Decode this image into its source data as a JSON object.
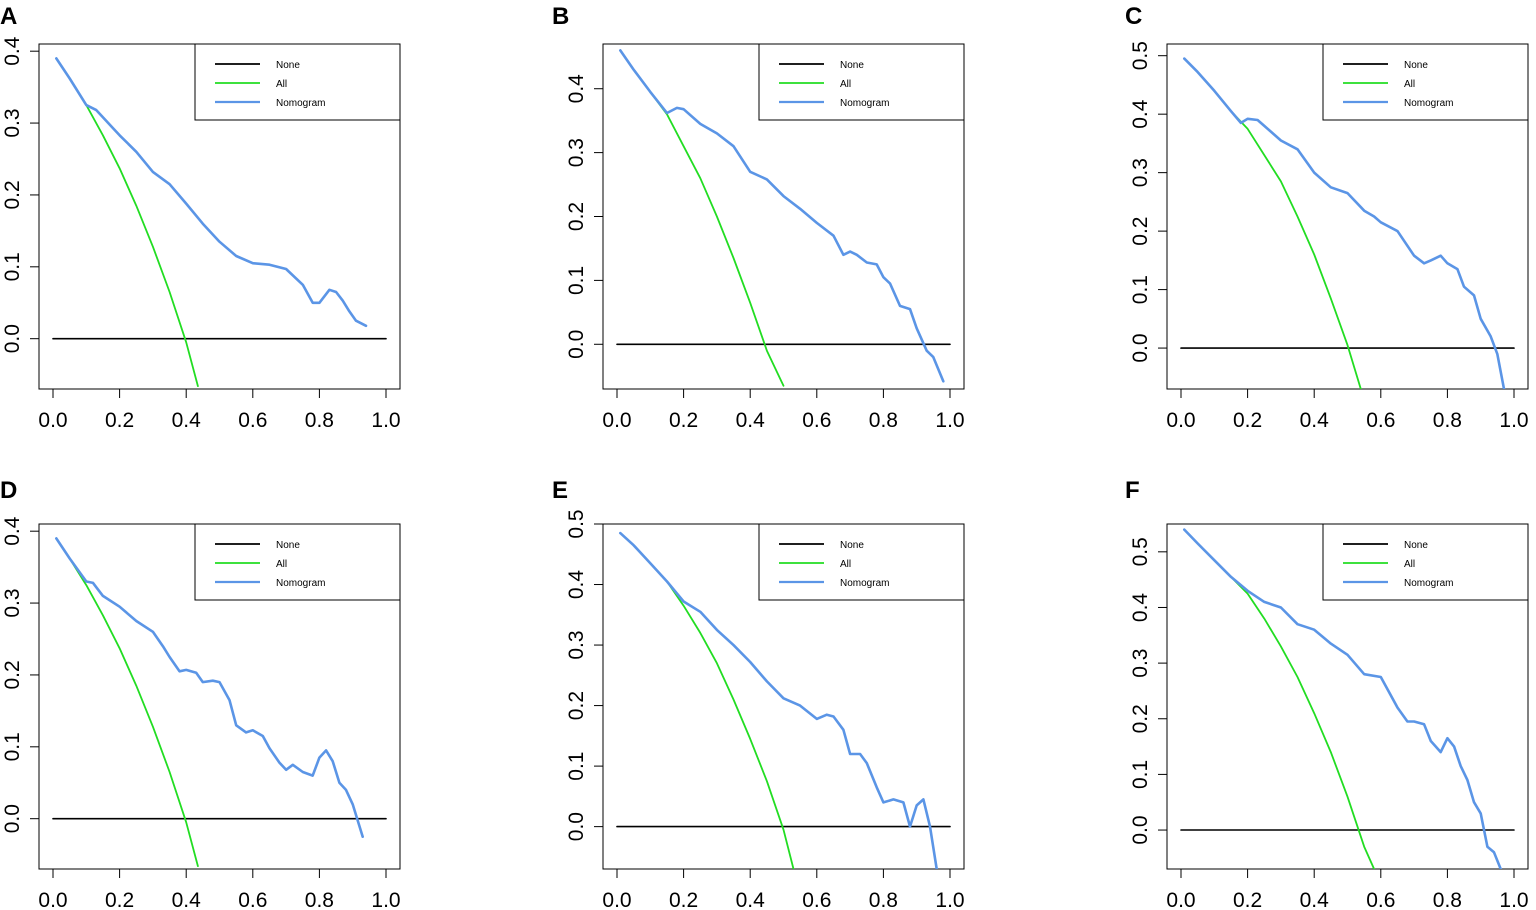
{
  "figure": {
    "colors": {
      "none": "#000000",
      "all": "#22dd22",
      "nomogram": "#5b95e6",
      "frame": "#000000"
    }
  },
  "chart_data": [
    {
      "panel_label": "A",
      "type": "line",
      "xlim": [
        0,
        1
      ],
      "ylim": [
        -0.07,
        0.41
      ],
      "x_ticks": [
        0.0,
        0.2,
        0.4,
        0.6,
        0.8,
        1.0
      ],
      "x_tick_labels": [
        "0.0",
        "0.2",
        "0.4",
        "0.6",
        "0.8",
        "1.0"
      ],
      "y_ticks": [
        0.0,
        0.1,
        0.2,
        0.3,
        0.4
      ],
      "y_tick_labels": [
        "0.0",
        "0.1",
        "0.2",
        "0.3",
        "0.4"
      ],
      "legend": [
        "None",
        "All",
        "Nomogram"
      ],
      "series": [
        {
          "name": "None",
          "x": [
            0.0,
            1.0
          ],
          "y": [
            0.0,
            0.0
          ]
        },
        {
          "name": "All",
          "x": [
            0.01,
            0.05,
            0.1,
            0.15,
            0.2,
            0.25,
            0.3,
            0.35,
            0.4,
            0.435
          ],
          "y": [
            0.39,
            0.362,
            0.325,
            0.283,
            0.237,
            0.185,
            0.128,
            0.065,
            -0.005,
            -0.066
          ]
        },
        {
          "name": "Nomogram",
          "x": [
            0.01,
            0.05,
            0.1,
            0.13,
            0.15,
            0.2,
            0.25,
            0.3,
            0.35,
            0.4,
            0.45,
            0.5,
            0.55,
            0.6,
            0.65,
            0.7,
            0.75,
            0.78,
            0.8,
            0.83,
            0.85,
            0.87,
            0.89,
            0.91,
            0.94
          ],
          "y": [
            0.39,
            0.362,
            0.325,
            0.318,
            0.308,
            0.283,
            0.26,
            0.232,
            0.215,
            0.188,
            0.16,
            0.135,
            0.115,
            0.105,
            0.103,
            0.097,
            0.075,
            0.05,
            0.05,
            0.068,
            0.065,
            0.053,
            0.038,
            0.025,
            0.018
          ]
        }
      ]
    },
    {
      "panel_label": "B",
      "type": "line",
      "xlim": [
        0,
        1
      ],
      "ylim": [
        -0.07,
        0.47
      ],
      "x_ticks": [
        0.0,
        0.2,
        0.4,
        0.6,
        0.8,
        1.0
      ],
      "x_tick_labels": [
        "0.0",
        "0.2",
        "0.4",
        "0.6",
        "0.8",
        "1.0"
      ],
      "y_ticks": [
        0.0,
        0.1,
        0.2,
        0.3,
        0.4
      ],
      "y_tick_labels": [
        "0.0",
        "0.1",
        "0.2",
        "0.3",
        "0.4"
      ],
      "legend": [
        "None",
        "All",
        "Nomogram"
      ],
      "series": [
        {
          "name": "None",
          "x": [
            0.0,
            1.0
          ],
          "y": [
            0.0,
            0.0
          ]
        },
        {
          "name": "All",
          "x": [
            0.01,
            0.05,
            0.1,
            0.15,
            0.2,
            0.25,
            0.3,
            0.35,
            0.4,
            0.45,
            0.5
          ],
          "y": [
            0.46,
            0.43,
            0.395,
            0.36,
            0.31,
            0.26,
            0.2,
            0.135,
            0.065,
            -0.01,
            -0.065
          ]
        },
        {
          "name": "Nomogram",
          "x": [
            0.01,
            0.05,
            0.1,
            0.15,
            0.18,
            0.2,
            0.25,
            0.3,
            0.35,
            0.4,
            0.45,
            0.5,
            0.55,
            0.6,
            0.65,
            0.68,
            0.7,
            0.72,
            0.75,
            0.78,
            0.8,
            0.82,
            0.85,
            0.88,
            0.9,
            0.93,
            0.95,
            0.98
          ],
          "y": [
            0.46,
            0.43,
            0.395,
            0.362,
            0.37,
            0.368,
            0.345,
            0.33,
            0.31,
            0.27,
            0.258,
            0.232,
            0.212,
            0.19,
            0.17,
            0.14,
            0.145,
            0.14,
            0.128,
            0.125,
            0.105,
            0.095,
            0.06,
            0.055,
            0.025,
            -0.01,
            -0.02,
            -0.058
          ]
        }
      ]
    },
    {
      "panel_label": "C",
      "type": "line",
      "xlim": [
        0,
        1
      ],
      "ylim": [
        -0.07,
        0.52
      ],
      "x_ticks": [
        0.0,
        0.2,
        0.4,
        0.6,
        0.8,
        1.0
      ],
      "x_tick_labels": [
        "0.0",
        "0.2",
        "0.4",
        "0.6",
        "0.8",
        "1.0"
      ],
      "y_ticks": [
        0.0,
        0.1,
        0.2,
        0.3,
        0.4,
        0.5
      ],
      "y_tick_labels": [
        "0.0",
        "0.1",
        "0.2",
        "0.3",
        "0.4",
        "0.5"
      ],
      "legend": [
        "None",
        "All",
        "Nomogram"
      ],
      "series": [
        {
          "name": "None",
          "x": [
            0.0,
            1.0
          ],
          "y": [
            0.0,
            0.0
          ]
        },
        {
          "name": "All",
          "x": [
            0.01,
            0.05,
            0.1,
            0.15,
            0.2,
            0.25,
            0.3,
            0.35,
            0.4,
            0.45,
            0.5,
            0.54
          ],
          "y": [
            0.495,
            0.472,
            0.44,
            0.405,
            0.375,
            0.33,
            0.285,
            0.225,
            0.16,
            0.085,
            0.005,
            -0.07
          ]
        },
        {
          "name": "Nomogram",
          "x": [
            0.01,
            0.05,
            0.1,
            0.15,
            0.18,
            0.2,
            0.23,
            0.25,
            0.3,
            0.35,
            0.4,
            0.45,
            0.5,
            0.55,
            0.58,
            0.6,
            0.65,
            0.7,
            0.73,
            0.75,
            0.78,
            0.8,
            0.83,
            0.85,
            0.88,
            0.9,
            0.93,
            0.95,
            0.97
          ],
          "y": [
            0.495,
            0.472,
            0.44,
            0.405,
            0.385,
            0.392,
            0.39,
            0.38,
            0.355,
            0.34,
            0.3,
            0.275,
            0.265,
            0.235,
            0.225,
            0.215,
            0.2,
            0.158,
            0.145,
            0.15,
            0.158,
            0.145,
            0.135,
            0.105,
            0.09,
            0.05,
            0.02,
            -0.01,
            -0.07
          ]
        }
      ]
    },
    {
      "panel_label": "D",
      "type": "line",
      "xlim": [
        0,
        1
      ],
      "ylim": [
        -0.07,
        0.41
      ],
      "x_ticks": [
        0.0,
        0.2,
        0.4,
        0.6,
        0.8,
        1.0
      ],
      "x_tick_labels": [
        "0.0",
        "0.2",
        "0.4",
        "0.6",
        "0.8",
        "1.0"
      ],
      "y_ticks": [
        0.0,
        0.1,
        0.2,
        0.3,
        0.4
      ],
      "y_tick_labels": [
        "0.0",
        "0.1",
        "0.2",
        "0.3",
        "0.4"
      ],
      "legend": [
        "None",
        "All",
        "Nomogram"
      ],
      "series": [
        {
          "name": "None",
          "x": [
            0.0,
            1.0
          ],
          "y": [
            0.0,
            0.0
          ]
        },
        {
          "name": "All",
          "x": [
            0.01,
            0.05,
            0.1,
            0.15,
            0.2,
            0.25,
            0.3,
            0.35,
            0.4,
            0.435
          ],
          "y": [
            0.39,
            0.362,
            0.325,
            0.283,
            0.237,
            0.185,
            0.128,
            0.065,
            -0.005,
            -0.066
          ]
        },
        {
          "name": "Nomogram",
          "x": [
            0.01,
            0.05,
            0.1,
            0.12,
            0.15,
            0.2,
            0.25,
            0.3,
            0.33,
            0.35,
            0.38,
            0.4,
            0.43,
            0.45,
            0.48,
            0.5,
            0.53,
            0.55,
            0.58,
            0.6,
            0.63,
            0.65,
            0.68,
            0.7,
            0.72,
            0.75,
            0.78,
            0.8,
            0.82,
            0.84,
            0.86,
            0.88,
            0.9,
            0.93
          ],
          "y": [
            0.39,
            0.362,
            0.33,
            0.328,
            0.31,
            0.295,
            0.275,
            0.26,
            0.24,
            0.225,
            0.205,
            0.207,
            0.203,
            0.19,
            0.192,
            0.19,
            0.165,
            0.13,
            0.12,
            0.123,
            0.115,
            0.098,
            0.078,
            0.068,
            0.075,
            0.065,
            0.06,
            0.085,
            0.095,
            0.08,
            0.05,
            0.04,
            0.02,
            -0.025
          ]
        }
      ]
    },
    {
      "panel_label": "E",
      "type": "line",
      "xlim": [
        0,
        1
      ],
      "ylim": [
        -0.07,
        0.5
      ],
      "x_ticks": [
        0.0,
        0.2,
        0.4,
        0.6,
        0.8,
        1.0
      ],
      "x_tick_labels": [
        "0.0",
        "0.2",
        "0.4",
        "0.6",
        "0.8",
        "1.0"
      ],
      "y_ticks": [
        0.0,
        0.1,
        0.2,
        0.3,
        0.4,
        0.5
      ],
      "y_tick_labels": [
        "0.0",
        "0.1",
        "0.2",
        "0.3",
        "0.4",
        "0.5"
      ],
      "legend": [
        "None",
        "All",
        "Nomogram"
      ],
      "series": [
        {
          "name": "None",
          "x": [
            0.0,
            1.0
          ],
          "y": [
            0.0,
            0.0
          ]
        },
        {
          "name": "All",
          "x": [
            0.01,
            0.05,
            0.1,
            0.15,
            0.2,
            0.25,
            0.3,
            0.35,
            0.4,
            0.45,
            0.5,
            0.53
          ],
          "y": [
            0.485,
            0.465,
            0.435,
            0.405,
            0.365,
            0.32,
            0.27,
            0.21,
            0.145,
            0.075,
            -0.005,
            -0.07
          ]
        },
        {
          "name": "Nomogram",
          "x": [
            0.01,
            0.05,
            0.1,
            0.15,
            0.2,
            0.25,
            0.3,
            0.35,
            0.4,
            0.45,
            0.5,
            0.55,
            0.6,
            0.63,
            0.65,
            0.68,
            0.7,
            0.73,
            0.75,
            0.78,
            0.8,
            0.83,
            0.86,
            0.88,
            0.9,
            0.92,
            0.94,
            0.96
          ],
          "y": [
            0.485,
            0.465,
            0.435,
            0.405,
            0.372,
            0.355,
            0.325,
            0.3,
            0.272,
            0.24,
            0.212,
            0.2,
            0.178,
            0.185,
            0.182,
            0.16,
            0.12,
            0.12,
            0.105,
            0.065,
            0.04,
            0.045,
            0.04,
            0.0,
            0.035,
            0.045,
            0.0,
            -0.07
          ]
        }
      ]
    },
    {
      "panel_label": "F",
      "type": "line",
      "xlim": [
        0,
        1
      ],
      "ylim": [
        -0.07,
        0.55
      ],
      "x_ticks": [
        0.0,
        0.2,
        0.4,
        0.6,
        0.8,
        1.0
      ],
      "x_tick_labels": [
        "0.0",
        "0.2",
        "0.4",
        "0.6",
        "0.8",
        "1.0"
      ],
      "y_ticks": [
        0.0,
        0.1,
        0.2,
        0.3,
        0.4,
        0.5
      ],
      "y_tick_labels": [
        "0.0",
        "0.1",
        "0.2",
        "0.3",
        "0.4",
        "0.5"
      ],
      "legend": [
        "None",
        "All",
        "Nomogram"
      ],
      "series": [
        {
          "name": "None",
          "x": [
            0.0,
            1.0
          ],
          "y": [
            0.0,
            0.0
          ]
        },
        {
          "name": "All",
          "x": [
            0.01,
            0.05,
            0.1,
            0.15,
            0.2,
            0.25,
            0.3,
            0.35,
            0.4,
            0.45,
            0.5,
            0.55,
            0.58
          ],
          "y": [
            0.54,
            0.515,
            0.485,
            0.455,
            0.425,
            0.38,
            0.33,
            0.275,
            0.21,
            0.14,
            0.06,
            -0.03,
            -0.07
          ]
        },
        {
          "name": "Nomogram",
          "x": [
            0.01,
            0.05,
            0.1,
            0.15,
            0.2,
            0.25,
            0.3,
            0.35,
            0.4,
            0.45,
            0.5,
            0.55,
            0.6,
            0.65,
            0.68,
            0.7,
            0.73,
            0.75,
            0.78,
            0.8,
            0.82,
            0.84,
            0.86,
            0.88,
            0.9,
            0.92,
            0.94,
            0.96
          ],
          "y": [
            0.54,
            0.515,
            0.485,
            0.455,
            0.43,
            0.41,
            0.4,
            0.37,
            0.36,
            0.335,
            0.315,
            0.28,
            0.275,
            0.22,
            0.195,
            0.195,
            0.19,
            0.16,
            0.14,
            0.165,
            0.15,
            0.115,
            0.09,
            0.05,
            0.03,
            -0.03,
            -0.04,
            -0.07
          ]
        }
      ]
    }
  ]
}
